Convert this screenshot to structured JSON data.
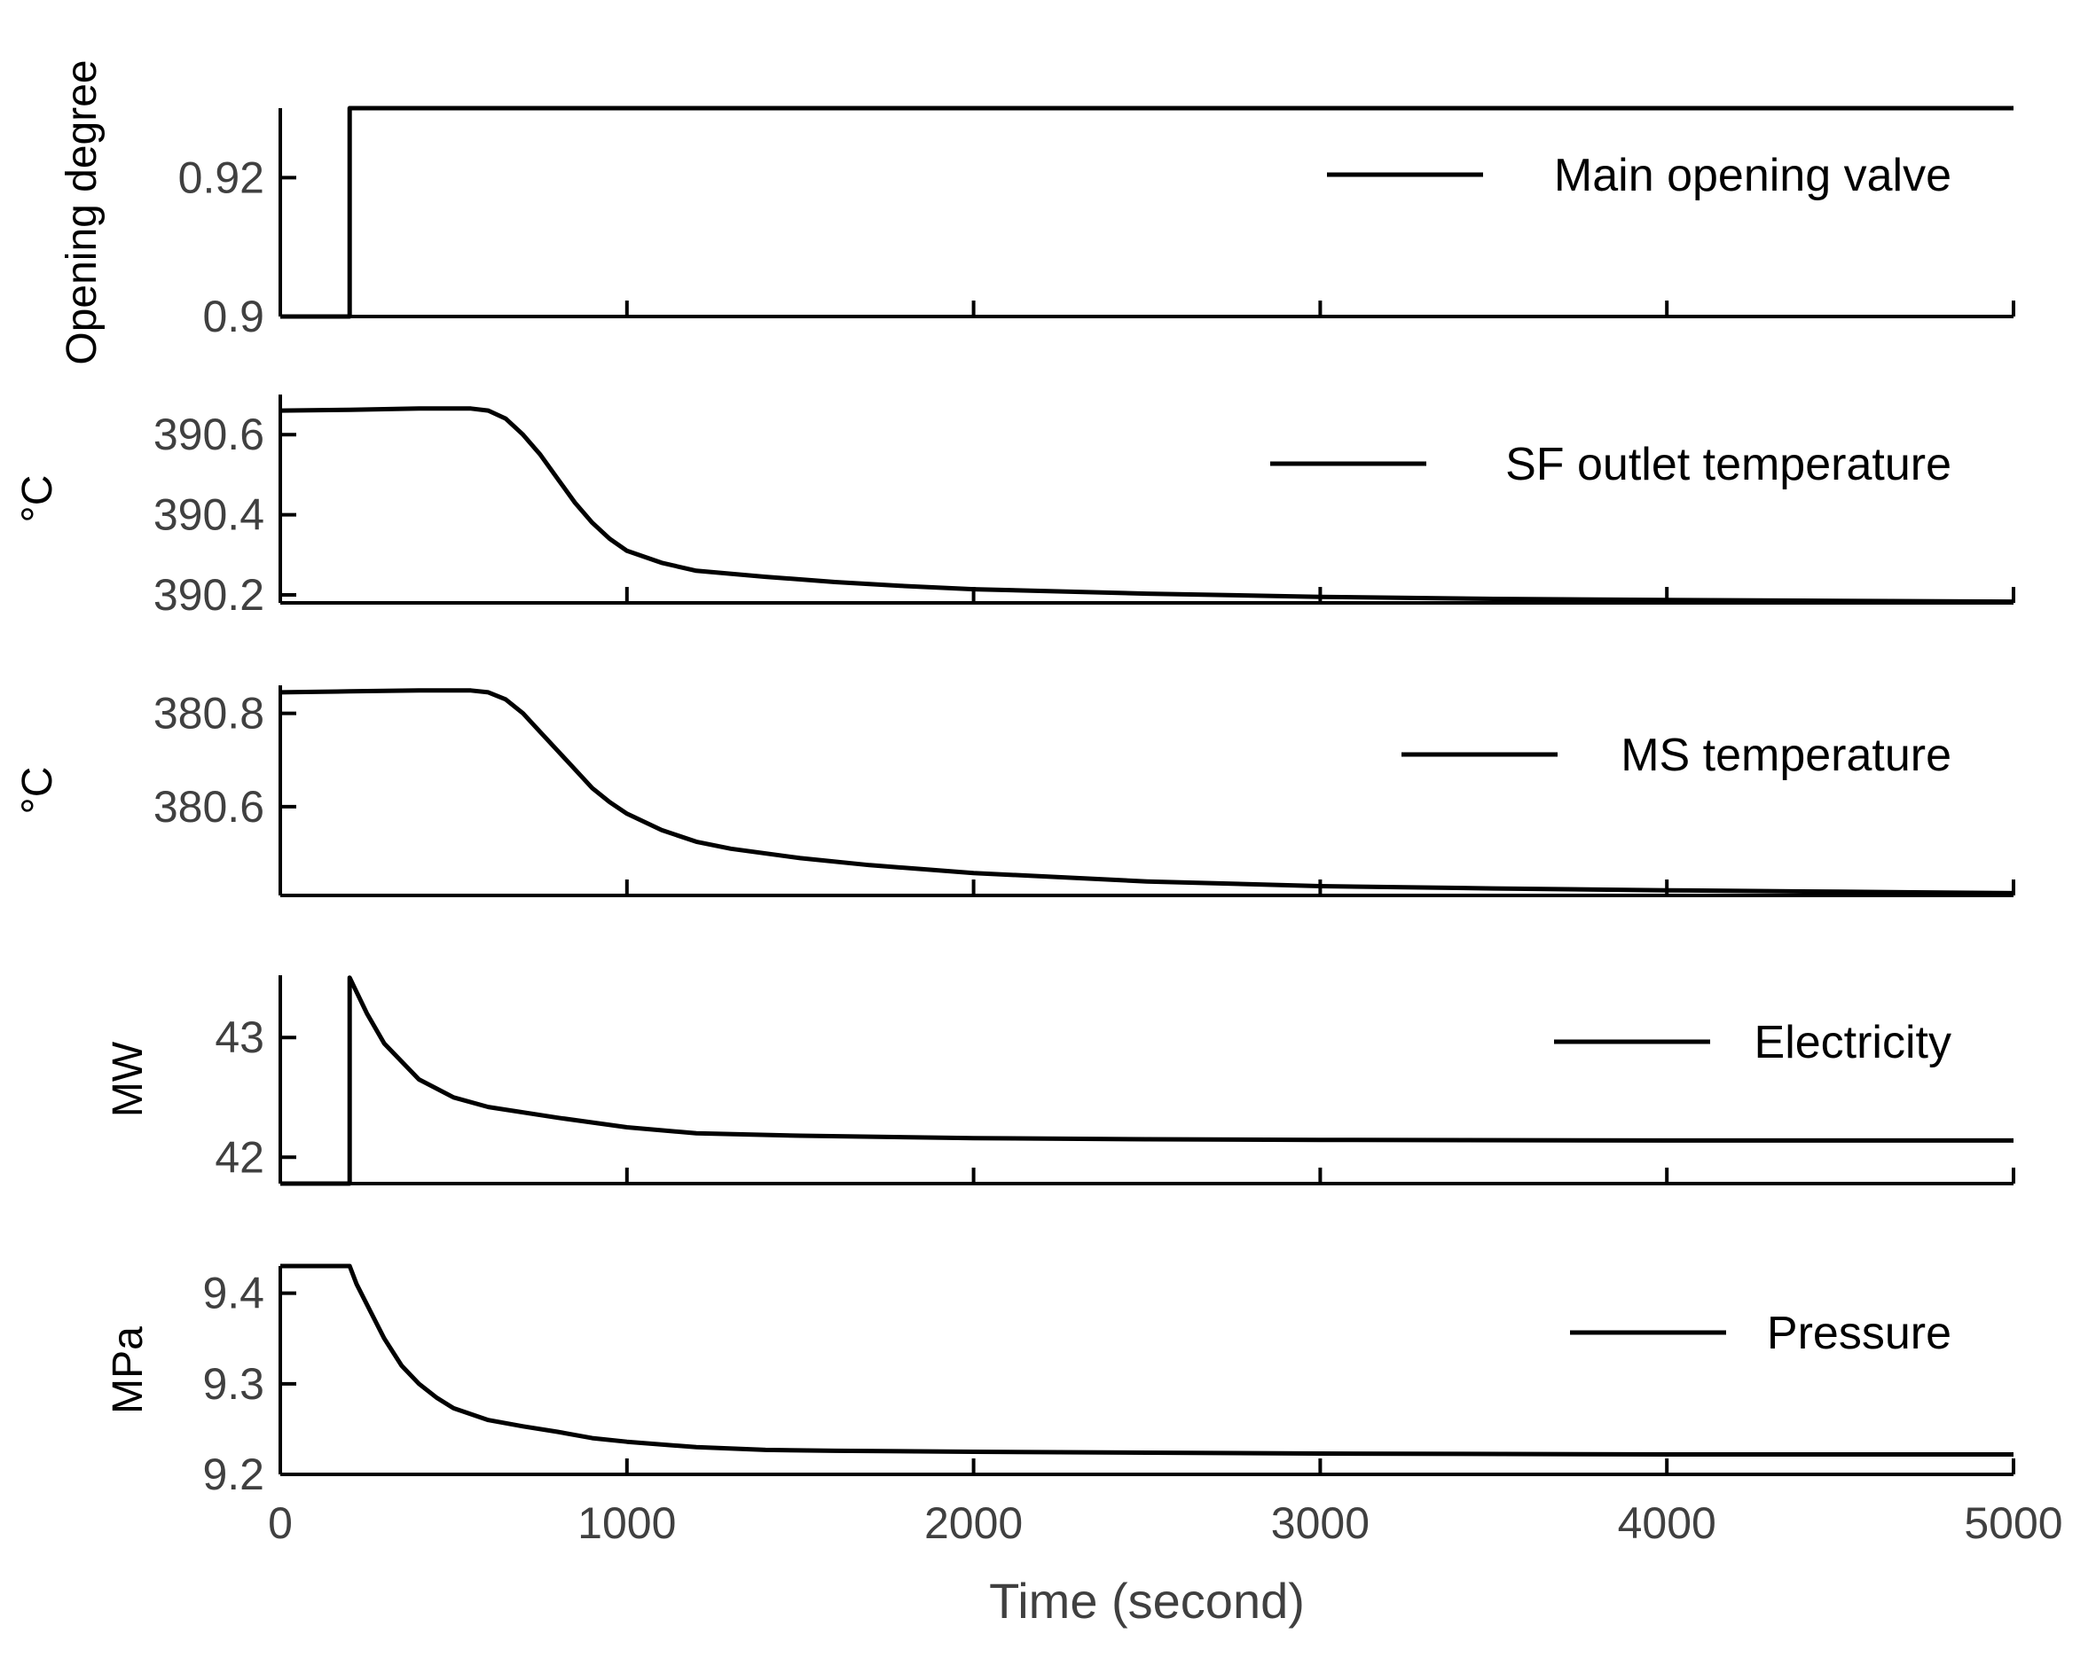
{
  "chart_data": [
    {
      "type": "line",
      "id": "valve",
      "ylabel": "Opening degree",
      "ylim": [
        0.9,
        0.93
      ],
      "yticks": [
        0.9,
        0.92
      ],
      "ytick_labels": [
        "0.9",
        "0.92"
      ],
      "series": [
        {
          "name": "Main opening valve",
          "x": [
            0,
            200,
            200,
            5000
          ],
          "y": [
            0.9,
            0.9,
            0.93,
            0.93
          ]
        }
      ]
    },
    {
      "type": "line",
      "id": "sf",
      "ylabel": "°C",
      "ylim": [
        390.18,
        390.7
      ],
      "yticks": [
        390.2,
        390.4,
        390.6
      ],
      "ytick_labels": [
        "390.2",
        "390.4",
        "390.6"
      ],
      "series": [
        {
          "name": "SF outlet temperature",
          "x": [
            0,
            200,
            400,
            550,
            600,
            650,
            700,
            750,
            800,
            850,
            900,
            950,
            1000,
            1100,
            1200,
            1400,
            1600,
            1800,
            2000,
            2500,
            3000,
            3500,
            4000,
            4500,
            5000
          ],
          "y": [
            390.66,
            390.662,
            390.665,
            390.665,
            390.66,
            390.64,
            390.6,
            390.55,
            390.49,
            390.43,
            390.38,
            390.34,
            390.31,
            390.28,
            390.26,
            390.245,
            390.232,
            390.222,
            390.214,
            390.203,
            390.195,
            390.19,
            390.187,
            390.185,
            390.183
          ]
        }
      ]
    },
    {
      "type": "line",
      "id": "ms",
      "ylabel": "°C",
      "ylim": [
        380.41,
        380.86
      ],
      "yticks": [
        380.6,
        380.8
      ],
      "ytick_labels": [
        "380.6",
        "380.8"
      ],
      "series": [
        {
          "name": "MS temperature",
          "x": [
            0,
            200,
            400,
            550,
            600,
            650,
            700,
            750,
            800,
            850,
            900,
            950,
            1000,
            1100,
            1200,
            1300,
            1500,
            1700,
            2000,
            2500,
            3000,
            3500,
            4000,
            4500,
            5000
          ],
          "y": [
            380.845,
            380.847,
            380.849,
            380.849,
            380.845,
            380.83,
            380.8,
            380.76,
            380.72,
            380.68,
            380.64,
            380.61,
            380.585,
            380.55,
            380.525,
            380.51,
            380.49,
            380.475,
            380.458,
            380.44,
            380.43,
            380.425,
            380.421,
            380.418,
            380.415
          ]
        }
      ]
    },
    {
      "type": "line",
      "id": "elec",
      "ylabel": "MW",
      "ylim": [
        41.78,
        43.52
      ],
      "yticks": [
        42,
        43
      ],
      "ytick_labels": [
        "42",
        "43"
      ],
      "series": [
        {
          "name": "Electricity",
          "x": [
            0,
            200,
            200,
            250,
            300,
            400,
            500,
            600,
            800,
            1000,
            1200,
            1500,
            2000,
            2500,
            3000,
            4000,
            5000
          ],
          "y": [
            41.78,
            41.78,
            43.5,
            43.2,
            42.95,
            42.65,
            42.5,
            42.42,
            42.33,
            42.25,
            42.2,
            42.18,
            42.16,
            42.15,
            42.145,
            42.14,
            42.14
          ]
        }
      ]
    },
    {
      "type": "line",
      "id": "press",
      "ylabel": "MPa",
      "ylim": [
        9.2,
        9.43
      ],
      "yticks": [
        9.2,
        9.3,
        9.4
      ],
      "ytick_labels": [
        "9.2",
        "9.3",
        "9.4"
      ],
      "xlabel": "Time (second)",
      "xlim": [
        0,
        5000
      ],
      "xticks": [
        0,
        1000,
        2000,
        3000,
        4000,
        5000
      ],
      "xtick_labels": [
        "0",
        "1000",
        "2000",
        "3000",
        "4000",
        "5000"
      ],
      "series": [
        {
          "name": "Pressure",
          "x": [
            0,
            200,
            220,
            260,
            300,
            350,
            400,
            450,
            500,
            600,
            700,
            800,
            900,
            1000,
            1200,
            1400,
            1600,
            2000,
            2500,
            3000,
            4000,
            5000
          ],
          "y": [
            9.43,
            9.43,
            9.41,
            9.38,
            9.35,
            9.32,
            9.3,
            9.285,
            9.273,
            9.26,
            9.253,
            9.247,
            9.24,
            9.236,
            9.23,
            9.227,
            9.226,
            9.225,
            9.224,
            9.223,
            9.222,
            9.222
          ]
        }
      ]
    }
  ]
}
